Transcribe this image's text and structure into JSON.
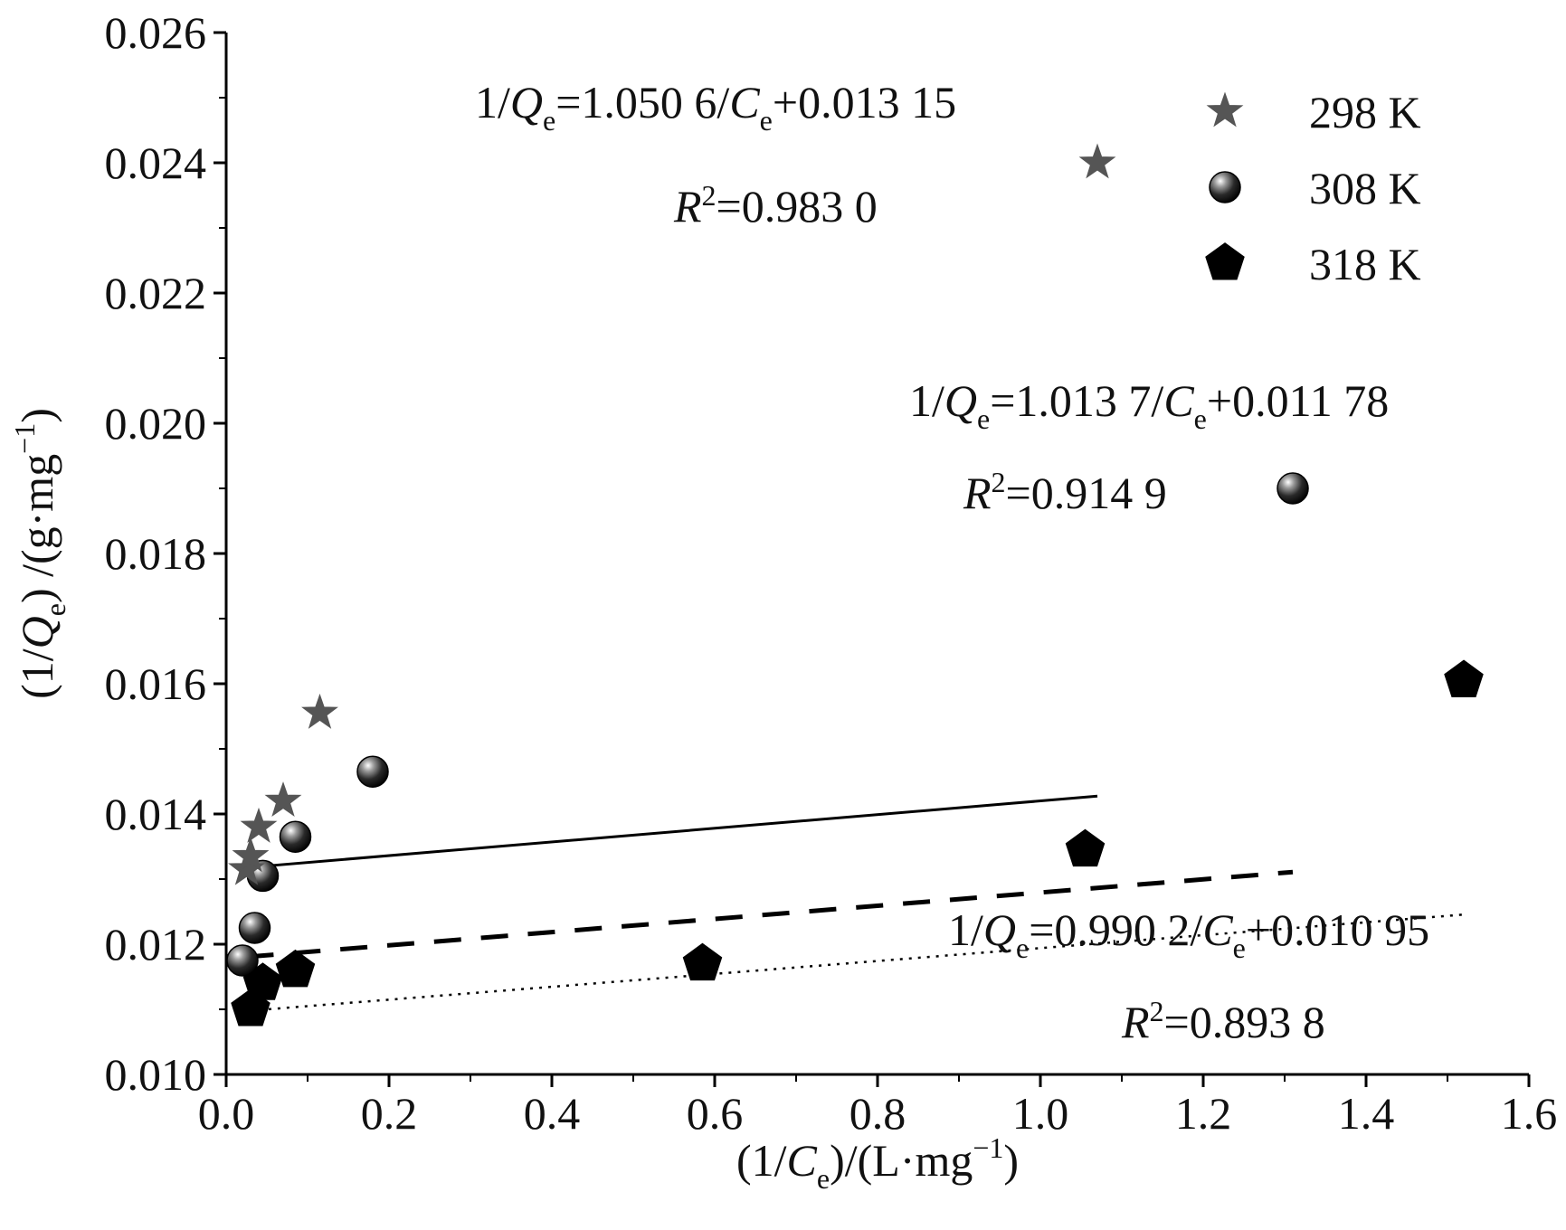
{
  "chart_data": {
    "type": "scatter",
    "xlabel": {
      "pre": "(1/",
      "var": "C",
      "sub": "e",
      "post": ")/(L·mg",
      "sup": "−1",
      "end": ")"
    },
    "ylabel": {
      "pre": "(1/",
      "var": "Q",
      "sub": "e",
      "post": ") /(g·mg",
      "sup": "−1",
      "end": ")"
    },
    "xlim": [
      0.0,
      1.6
    ],
    "ylim": [
      0.01,
      0.026
    ],
    "x_ticks": [
      "0.0",
      "0.2",
      "0.4",
      "0.6",
      "0.8",
      "1.0",
      "1.2",
      "1.4",
      "1.6"
    ],
    "y_ticks": [
      "0.010",
      "0.012",
      "0.014",
      "0.016",
      "0.018",
      "0.020",
      "0.022",
      "0.024",
      "0.026"
    ],
    "series": [
      {
        "name": "298 K",
        "marker": "star",
        "color": "#555555",
        "points": [
          [
            0.025,
            0.01315
          ],
          [
            0.03,
            0.01335
          ],
          [
            0.04,
            0.0138
          ],
          [
            0.07,
            0.0142
          ],
          [
            0.115,
            0.01555
          ],
          [
            1.07,
            0.024
          ]
        ],
        "fit": {
          "slope": 1.0506,
          "intercept": 0.01315,
          "x_range": [
            0.025,
            1.07
          ],
          "style": "solid"
        },
        "equation": {
          "a": "1/",
          "b": "Q",
          "c": "e",
          "d": "=1.050 6/",
          "e": "C",
          "f": "e",
          "g": "+0.013 15"
        },
        "r2": {
          "a": "R",
          "b": "2",
          "c": "=0.983 0"
        }
      },
      {
        "name": "308 K",
        "marker": "sphere",
        "color": "#222222",
        "points": [
          [
            0.02,
            0.01175
          ],
          [
            0.035,
            0.01225
          ],
          [
            0.045,
            0.01305
          ],
          [
            0.085,
            0.01365
          ],
          [
            0.18,
            0.01465
          ],
          [
            1.31,
            0.019
          ]
        ],
        "fit": {
          "slope": 1.0137,
          "intercept": 0.01178,
          "x_range": [
            0.025,
            1.31
          ],
          "style": "dashed"
        },
        "equation": {
          "a": "1/",
          "b": "Q",
          "c": "e",
          "d": "=1.013 7/",
          "e": "C",
          "f": "e",
          "g": "+0.011 78"
        },
        "r2": {
          "a": "R",
          "b": "2",
          "c": "=0.914 9"
        }
      },
      {
        "name": "318 K",
        "marker": "pentagon",
        "color": "#000000",
        "points": [
          [
            0.03,
            0.011
          ],
          [
            0.045,
            0.0114
          ],
          [
            0.085,
            0.0116
          ],
          [
            0.585,
            0.0117
          ],
          [
            1.055,
            0.01345
          ],
          [
            1.52,
            0.01605
          ]
        ],
        "fit": {
          "slope": 0.9902,
          "intercept": 0.01095,
          "x_range": [
            0.03,
            1.52
          ],
          "style": "dotted"
        },
        "equation": {
          "a": "1/",
          "b": "Q",
          "c": "e",
          "d": "=0.990 2/",
          "e": "C",
          "f": "e",
          "g": "+0.010 95"
        },
        "r2": {
          "a": "R",
          "b": "2",
          "c": "=0.893 8"
        }
      }
    ],
    "legend": {
      "position": "top-right",
      "labels": [
        "298 K",
        "308 K",
        "318 K"
      ]
    }
  }
}
